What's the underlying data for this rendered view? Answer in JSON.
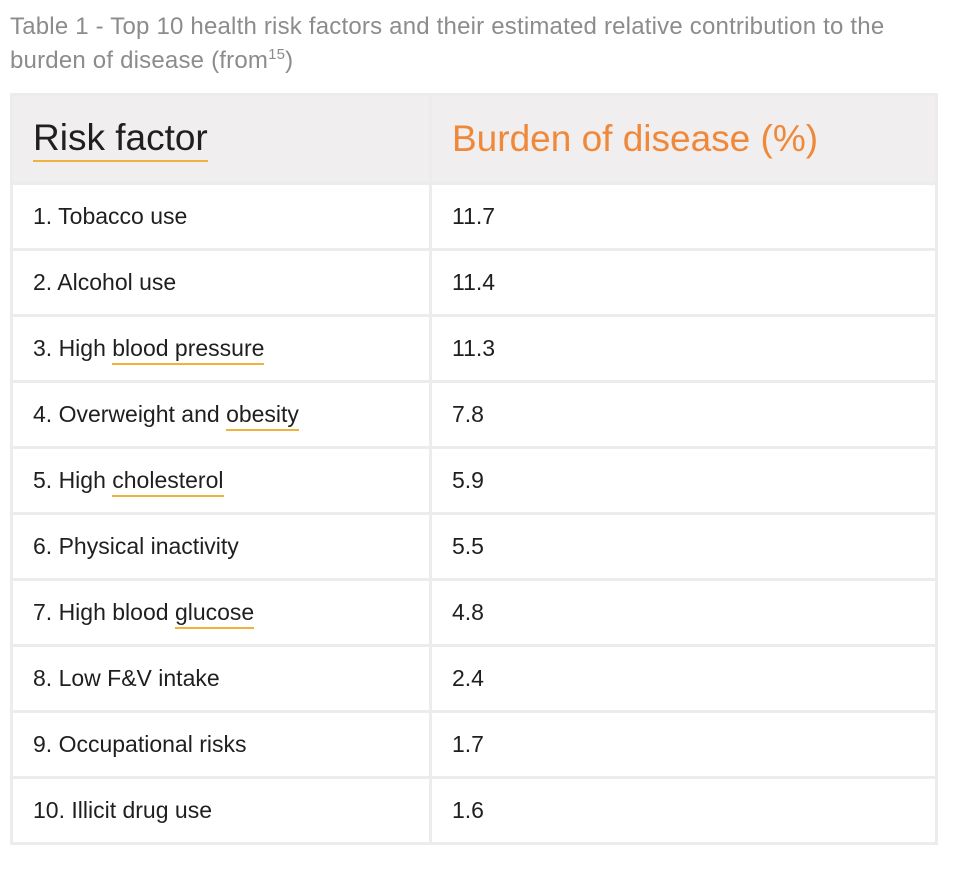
{
  "caption": {
    "text": "Table 1 - Top 10 health risk factors and their estimated relative contribution to the burden of disease (from",
    "ref": "15",
    "close": ")"
  },
  "table": {
    "headers": {
      "risk": "Risk factor",
      "burden": "Burden of disease (%)"
    },
    "rows": [
      {
        "prefix": "1. Tobacco use",
        "link": "",
        "value": "11.7"
      },
      {
        "prefix": "2. Alcohol use",
        "link": "",
        "value": "11.4"
      },
      {
        "prefix": "3. High ",
        "link": "blood pressure",
        "value": "11.3"
      },
      {
        "prefix": "4. Overweight and ",
        "link": "obesity",
        "value": "7.8"
      },
      {
        "prefix": "5. High ",
        "link": "cholesterol",
        "value": "5.9"
      },
      {
        "prefix": "6. Physical inactivity",
        "link": "",
        "value": "5.5"
      },
      {
        "prefix": "7. High blood ",
        "link": "glucose",
        "value": "4.8"
      },
      {
        "prefix": "8. Low F&V intake",
        "link": "",
        "value": "2.4"
      },
      {
        "prefix": "9. Occupational risks",
        "link": "",
        "value": "1.7"
      },
      {
        "prefix": "10. Illicit drug use",
        "link": "",
        "value": "1.6"
      }
    ]
  },
  "colors": {
    "accent": "#f0883a",
    "underline": "#f0b23e",
    "caption": "#8c8c8c",
    "header_bg": "#f0eeee",
    "grid": "#ececec"
  }
}
